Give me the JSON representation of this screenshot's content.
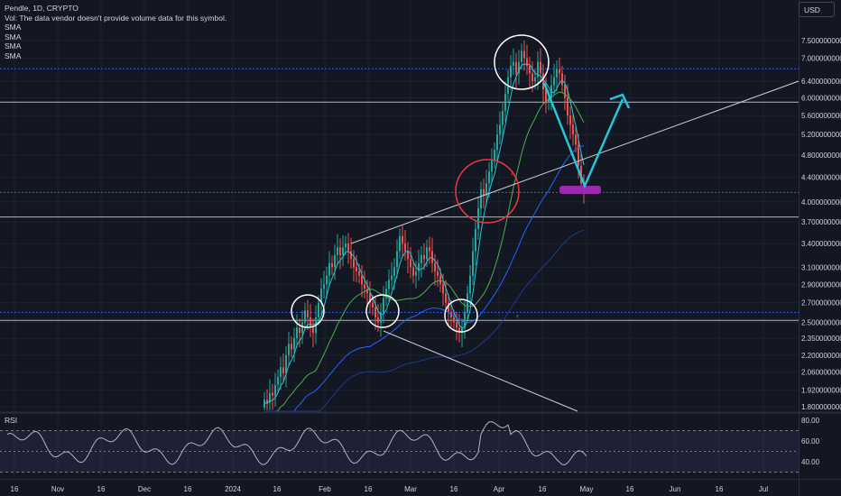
{
  "header": {
    "symbol_line": "Pendle, 1D, CRYPTO",
    "vol_line": "Vol: The data vendor doesn't provide volume data for this symbol.",
    "indicators": [
      "SMA",
      "SMA",
      "SMA",
      "SMA"
    ],
    "currency_button": "USD"
  },
  "rsi_panel": {
    "label": "RSI",
    "ticks": [
      "80.00",
      "60.00",
      "40.00"
    ]
  },
  "chart_data": {
    "type": "candlestick",
    "symbol": "Pendle, 1D, CRYPTO",
    "y_scale": "log",
    "ylim": [
      1.7,
      8.0
    ],
    "price_ticks": [
      "7.500000000",
      "7.000000000",
      "6.400000000",
      "6.000000000",
      "5.600000000",
      "5.200000000",
      "4.800000000",
      "4.400000000",
      "4.000000000",
      "3.700000000",
      "3.400000000",
      "3.100000000",
      "2.900000000",
      "2.700000000",
      "2.500000000",
      "2.350000000",
      "2.200000000",
      "2.060000000",
      "1.920000000",
      "1.800000000"
    ],
    "x_ticks": [
      "16",
      "Nov",
      "16",
      "Dec",
      "16",
      "2024",
      "16",
      "Feb",
      "16",
      "Mar",
      "16",
      "Apr",
      "16",
      "May",
      "16",
      "Jun",
      "16",
      "Jul"
    ],
    "candles_close": [
      1.85,
      1.83,
      1.9,
      1.88,
      1.96,
      2.02,
      2.1,
      2.05,
      2.2,
      2.3,
      2.25,
      2.35,
      2.45,
      2.4,
      2.5,
      2.62,
      2.55,
      2.45,
      2.4,
      2.55,
      2.7,
      2.85,
      2.9,
      3.0,
      3.15,
      3.1,
      3.25,
      3.35,
      3.25,
      3.35,
      3.4,
      3.3,
      3.2,
      3.1,
      3.05,
      3.0,
      2.9,
      2.85,
      2.8,
      2.7,
      2.65,
      2.55,
      2.5,
      2.6,
      2.75,
      2.85,
      2.95,
      3.0,
      3.1,
      3.3,
      3.5,
      3.4,
      3.3,
      3.2,
      3.1,
      3.0,
      3.05,
      3.15,
      3.25,
      3.2,
      3.35,
      3.3,
      3.15,
      3.05,
      3.0,
      2.9,
      2.8,
      2.7,
      2.6,
      2.55,
      2.5,
      2.45,
      2.4,
      2.45,
      2.6,
      2.8,
      3.0,
      3.3,
      3.6,
      3.9,
      4.2,
      4.1,
      4.3,
      4.5,
      4.7,
      4.9,
      5.2,
      5.4,
      5.7,
      6.1,
      6.5,
      6.8,
      6.9,
      6.6,
      6.9,
      7.2,
      7.0,
      6.8,
      6.6,
      6.4,
      6.5,
      6.9,
      6.6,
      6.2,
      5.9,
      6.0,
      6.3,
      6.5,
      6.7,
      6.6,
      6.3,
      6.0,
      5.6,
      5.4,
      5.2,
      5.0,
      4.6,
      4.3,
      4.2
    ],
    "sma_lines": [
      {
        "color": "#26c6da",
        "name": ""
      },
      {
        "color": "#4caf50",
        "name": ""
      },
      {
        "color": "#2962ff",
        "name": ""
      },
      {
        "color": "#1e3a8a",
        "name": ""
      }
    ],
    "horizontal_levels": [
      {
        "price": 6.72,
        "style": "dotted",
        "color": "#2962ff"
      },
      {
        "price": 5.9,
        "style": "solid",
        "color": "#b2b5be"
      },
      {
        "price": 4.15,
        "style": "dotted",
        "color": "#2962ff"
      },
      {
        "price": 3.77,
        "style": "solid",
        "color": "#b2b5be"
      },
      {
        "price": 2.6,
        "style": "dotted",
        "color": "#2962ff"
      },
      {
        "price": 2.52,
        "style": "solid",
        "color": "#b2b5be"
      }
    ],
    "annotations": [
      "white circles at swing lows/high",
      "red circle at breakout",
      "teal V projection arrow",
      "purple target zone"
    ],
    "colors": {
      "up": "#26a69a",
      "down": "#ef5350",
      "background": "#131722"
    }
  }
}
